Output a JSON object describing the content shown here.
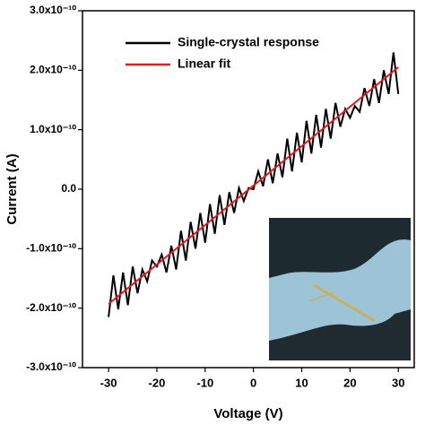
{
  "chart_data": {
    "type": "line",
    "x_label": "Voltage (V)",
    "y_label": "Current (A)",
    "xlim": [
      -35.4,
      33.3
    ],
    "xticks": [
      -30,
      -20,
      -10,
      0,
      10,
      20,
      30
    ],
    "ylim": [
      -3e-10,
      3e-10
    ],
    "yticks": [
      {
        "value": -3e-10,
        "label": "-3.0x10⁻¹⁰"
      },
      {
        "value": -2e-10,
        "label": "-2.0x10⁻¹⁰"
      },
      {
        "value": -1e-10,
        "label": "-1.0x10⁻¹⁰"
      },
      {
        "value": 0,
        "label": "0.0"
      },
      {
        "value": 1e-10,
        "label": "1.0x10⁻¹⁰"
      },
      {
        "value": 2e-10,
        "label": "2.0x10⁻¹⁰"
      },
      {
        "value": 3e-10,
        "label": "3.0x10⁻¹⁰"
      }
    ],
    "legend": "upper left",
    "series": [
      {
        "name": "Single-crystal response",
        "color": "#000000",
        "x": [
          -30,
          -29,
          -28,
          -27,
          -26,
          -25,
          -24,
          -23,
          -22,
          -21,
          -20,
          -19,
          -18,
          -17,
          -16,
          -15,
          -14,
          -13,
          -12,
          -11,
          -10,
          -9,
          -8,
          -7,
          -6,
          -5,
          -4,
          -3,
          -2,
          -1,
          0,
          1,
          2,
          3,
          4,
          5,
          6,
          7,
          8,
          9,
          10,
          11,
          12,
          13,
          14,
          15,
          16,
          17,
          18,
          19,
          20,
          21,
          22,
          23,
          24,
          25,
          26,
          27,
          28,
          29,
          30
        ],
        "values": [
          -2.15e-10,
          -1.45e-10,
          -2.02e-10,
          -1.4e-10,
          -1.95e-10,
          -1.3e-10,
          -1.75e-10,
          -1.35e-10,
          -1.55e-10,
          -1.2e-10,
          -1.3e-10,
          -1.1e-10,
          -1.4e-10,
          -9.5e-11,
          -1.35e-10,
          -7e-11,
          -1.2e-10,
          -5.5e-11,
          -1e-10,
          -4e-11,
          -9e-11,
          -2.5e-11,
          -7.5e-11,
          -1e-11,
          -6e-11,
          -5e-12,
          -4e-11,
          2e-12,
          -2e-11,
          2e-12,
          0,
          3e-11,
          5e-12,
          5e-11,
          1e-11,
          6e-11,
          2e-11,
          8.5e-11,
          3e-11,
          9.5e-11,
          4.5e-11,
          1.15e-10,
          6e-11,
          1.25e-10,
          7e-11,
          1.35e-10,
          8.5e-11,
          1.45e-10,
          1.05e-10,
          1.35e-10,
          1.2e-10,
          1.4e-10,
          1.3e-10,
          1.7e-10,
          1.4e-10,
          1.85e-10,
          1.45e-10,
          2e-10,
          1.6e-10,
          2.3e-10,
          1.6e-10
        ]
      },
      {
        "name": "Linear fit",
        "color": "#e41a1c",
        "x": [
          -30,
          30
        ],
        "values": [
          -1.93e-10,
          2.05e-10
        ]
      }
    ]
  }
}
